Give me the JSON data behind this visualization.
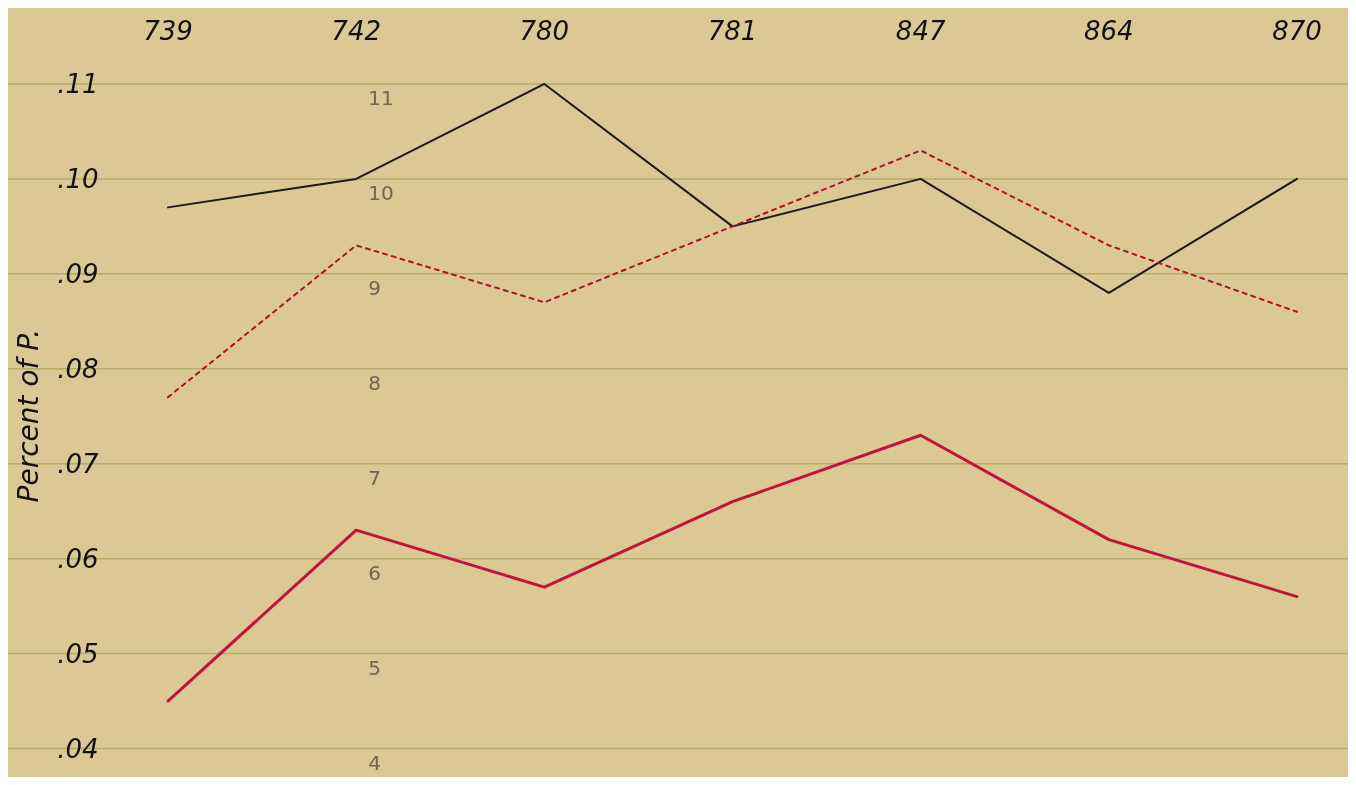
{
  "chart_data": {
    "type": "line",
    "ylabel": "Percent of P.",
    "categories": [
      "739",
      "742",
      "780",
      "781",
      "847",
      "864",
      "870"
    ],
    "ylim": [
      0.037,
      0.118
    ],
    "yticks": [
      {
        "value": 0.04,
        "label": ".04"
      },
      {
        "value": 0.05,
        "label": ".05"
      },
      {
        "value": 0.06,
        "label": ".06"
      },
      {
        "value": 0.07,
        "label": ".07"
      },
      {
        "value": 0.08,
        "label": ".08"
      },
      {
        "value": 0.09,
        "label": ".09"
      },
      {
        "value": 0.1,
        "label": ".10"
      },
      {
        "value": 0.11,
        "label": ".11"
      }
    ],
    "y2lim": [
      3.7,
      11.8
    ],
    "y2ticks": [
      4,
      5,
      6,
      7,
      8,
      9,
      10,
      11
    ],
    "grid": "y",
    "marker": "none",
    "series": [
      {
        "color": "#1a1a1a",
        "line_style": "solid",
        "values": [
          0.097,
          0.1,
          0.11,
          0.095,
          0.1,
          0.088,
          0.1
        ]
      },
      {
        "color": "#b0102a",
        "line_style": "dotted",
        "values": [
          0.077,
          0.093,
          0.087,
          0.095,
          0.103,
          0.093,
          0.086
        ]
      },
      {
        "color": "#c0143c",
        "line_style": "solid",
        "values": [
          0.045,
          0.063,
          0.057,
          0.066,
          0.073,
          0.062,
          0.056
        ]
      }
    ]
  }
}
